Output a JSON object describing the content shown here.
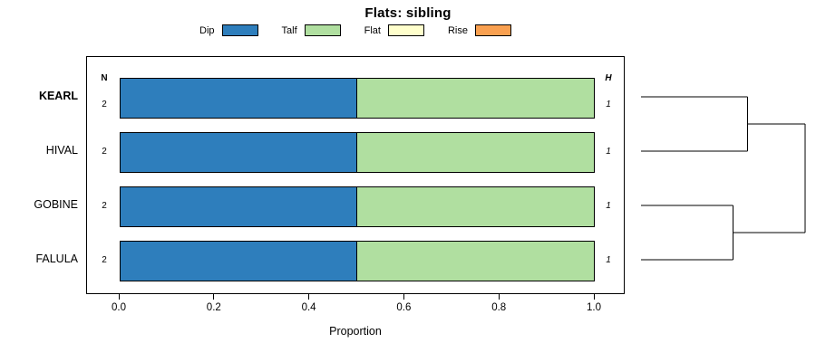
{
  "title": "Flats: sibling",
  "columns": {
    "left_header": "N",
    "right_header": "H"
  },
  "chart_data": {
    "type": "bar",
    "orientation": "horizontal",
    "stacked": true,
    "title": "Flats: sibling",
    "xlabel": "Proportion",
    "xlim": [
      0,
      1
    ],
    "x_ticks": [
      0,
      0.2,
      0.4,
      0.6,
      0.8,
      1
    ],
    "x_tick_labels": [
      "0.0",
      "0.2",
      "0.4",
      "0.6",
      "0.8",
      "1.0"
    ],
    "categories": [
      "KEARL",
      "HIVAL",
      "GOBINE",
      "FALULA"
    ],
    "emphasized_category": "KEARL",
    "series": [
      {
        "name": "Dip",
        "color": "#2e7ebc",
        "values": [
          0.5,
          0.5,
          0.5,
          0.5
        ]
      },
      {
        "name": "Talf",
        "color": "#b0dfa0",
        "values": [
          0.5,
          0.5,
          0.5,
          0.5
        ]
      },
      {
        "name": "Flat",
        "color": "#ffffcc",
        "values": [
          0,
          0,
          0,
          0
        ]
      },
      {
        "name": "Rise",
        "color": "#f9a050",
        "values": [
          0,
          0,
          0,
          0
        ]
      }
    ],
    "n_values": [
      "2",
      "2",
      "2",
      "2"
    ],
    "h_values": [
      "1",
      "1",
      "1",
      "1"
    ],
    "legend_position": "top",
    "grid": false,
    "dendrogram": {
      "side": "right",
      "merges": [
        {
          "a": 0,
          "b": 1,
          "height": 0.65
        },
        {
          "a": 2,
          "b": 3,
          "height": 0.56
        },
        {
          "a": 4,
          "b": 5,
          "height": 1.0
        }
      ]
    }
  }
}
